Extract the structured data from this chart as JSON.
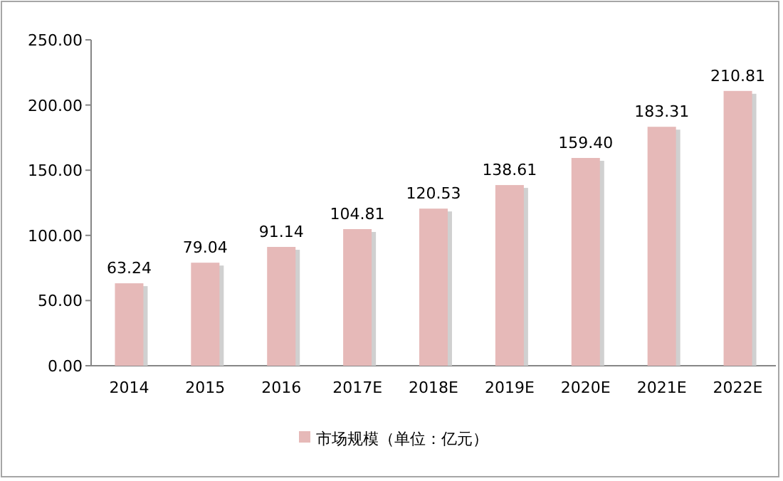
{
  "chart_data": {
    "type": "bar",
    "categories": [
      "2014",
      "2015",
      "2016",
      "2017E",
      "2018E",
      "2019E",
      "2020E",
      "2021E",
      "2022E"
    ],
    "series": [
      {
        "name": "市场规模（单位：亿元）",
        "color": "#e6b9b8",
        "values": [
          63.24,
          79.04,
          91.14,
          104.81,
          120.53,
          138.61,
          159.4,
          183.31,
          210.81
        ],
        "value_labels": [
          "63.24",
          "79.04",
          "91.14",
          "104.81",
          "120.53",
          "138.61",
          "159.40",
          "183.31",
          "210.81"
        ]
      }
    ],
    "ylim": [
      0,
      250
    ],
    "yticks": [
      {
        "value": 0,
        "label": "0.00"
      },
      {
        "value": 50,
        "label": "50.00"
      },
      {
        "value": 100,
        "label": "100.00"
      },
      {
        "value": 150,
        "label": "150.00"
      },
      {
        "value": 200,
        "label": "200.00"
      },
      {
        "value": 250,
        "label": "250.00"
      }
    ],
    "legend": "bottom"
  }
}
